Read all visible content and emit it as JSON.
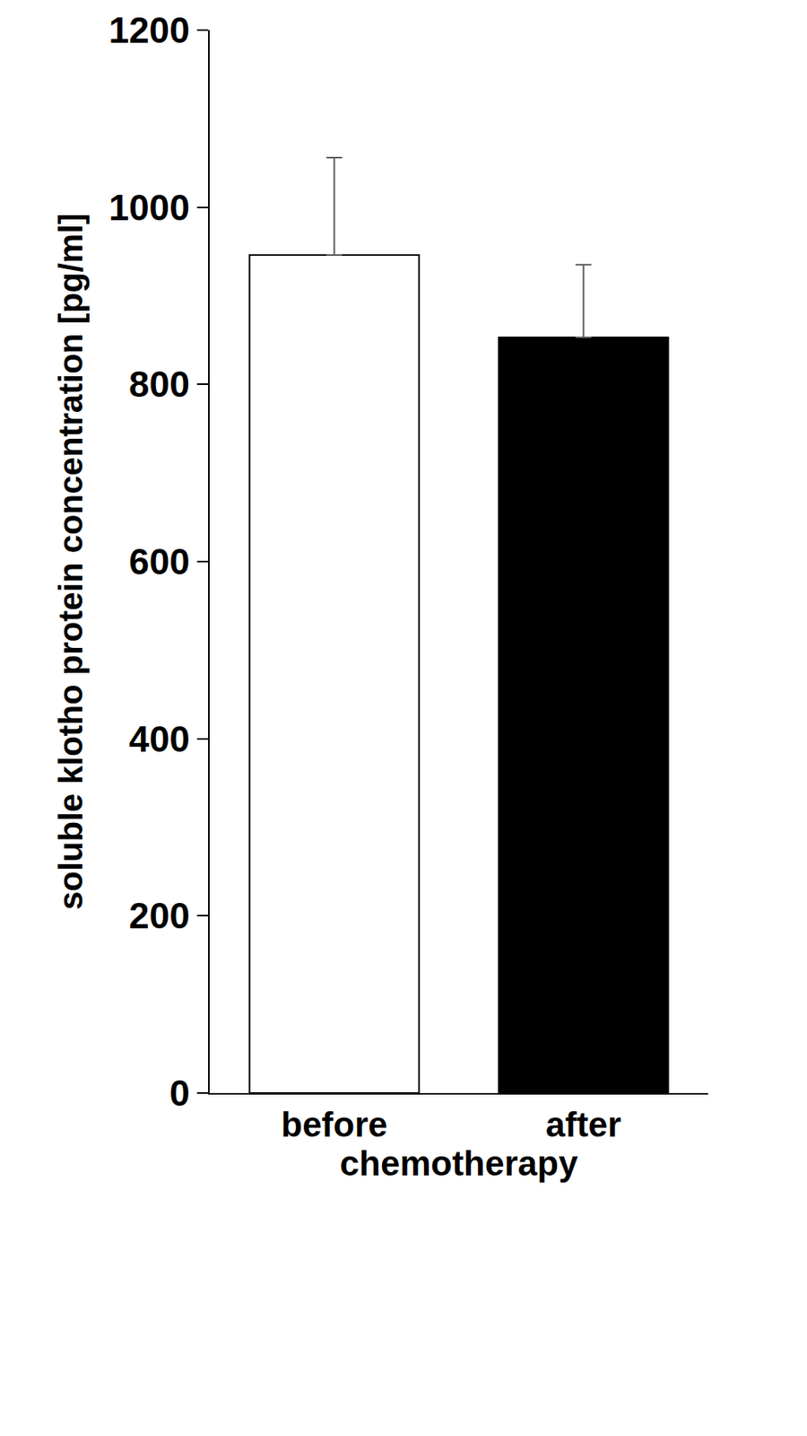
{
  "chart_data": {
    "type": "bar",
    "categories": [
      "before",
      "after"
    ],
    "values": [
      946,
      853
    ],
    "errors": [
      110,
      82
    ],
    "colors": [
      "#ffffff",
      "#000000"
    ],
    "x_label": "chemotherapy",
    "y_label": "soluble klotho protein concentration [pg/ml]",
    "ylim": [
      0,
      1200
    ],
    "yticks": [
      0,
      200,
      400,
      600,
      800,
      1000,
      1200
    ],
    "grid": false
  }
}
